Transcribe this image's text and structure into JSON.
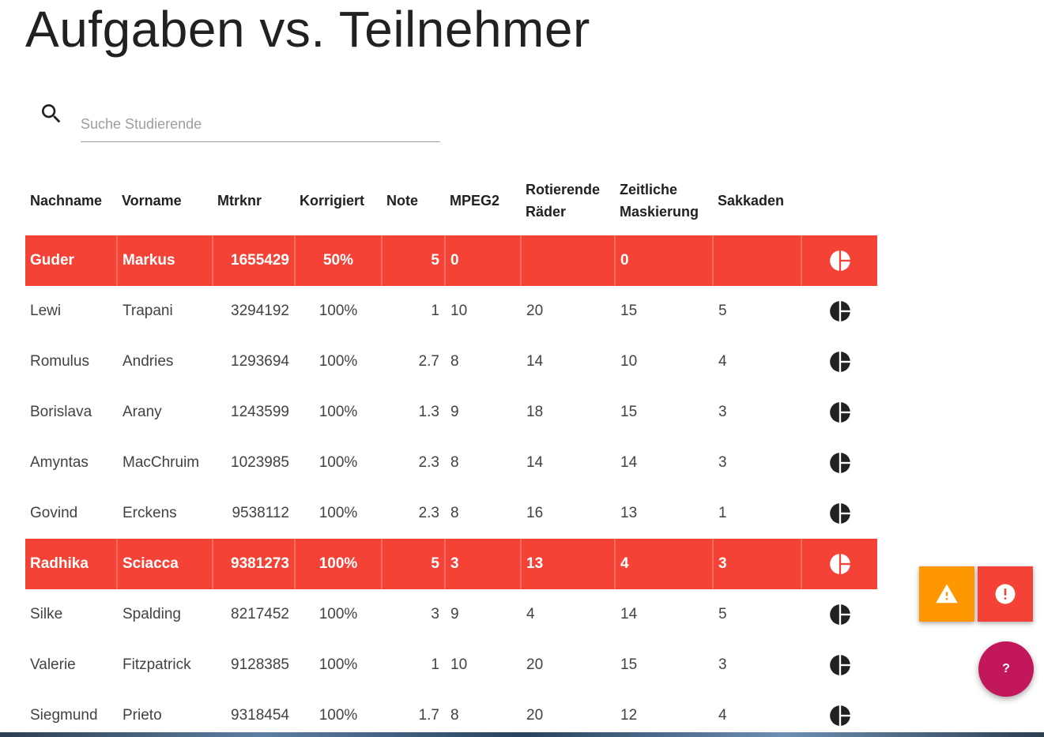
{
  "page": {
    "title": "Aufgaben vs. Teilnehmer"
  },
  "search": {
    "placeholder": "Suche Studierende",
    "value": "",
    "icon": "search-icon"
  },
  "table": {
    "columns": [
      "Nachname",
      "Vorname",
      "Mtrknr",
      "Korrigiert",
      "Note",
      "MPEG2",
      "Rotierende Räder",
      "Zeitliche Maskierung",
      "Sakkaden"
    ],
    "rows": [
      {
        "highlight": true,
        "cells": [
          "Guder",
          "Markus",
          "1655429",
          "50%",
          "5",
          "0",
          "",
          "0",
          ""
        ]
      },
      {
        "highlight": false,
        "cells": [
          "Lewi",
          "Trapani",
          "3294192",
          "100%",
          "1",
          "10",
          "20",
          "15",
          "5"
        ]
      },
      {
        "highlight": false,
        "cells": [
          "Romulus",
          "Andries",
          "1293694",
          "100%",
          "2.7",
          "8",
          "14",
          "10",
          "4"
        ]
      },
      {
        "highlight": false,
        "cells": [
          "Borislava",
          "Arany",
          "1243599",
          "100%",
          "1.3",
          "9",
          "18",
          "15",
          "3"
        ]
      },
      {
        "highlight": false,
        "cells": [
          "Amyntas",
          "MacChruim",
          "1023985",
          "100%",
          "2.3",
          "8",
          "14",
          "14",
          "3"
        ]
      },
      {
        "highlight": false,
        "cells": [
          "Govind",
          "Erckens",
          "9538112",
          "100%",
          "2.3",
          "8",
          "16",
          "13",
          "1"
        ]
      },
      {
        "highlight": true,
        "cells": [
          "Radhika",
          "Sciacca",
          "9381273",
          "100%",
          "5",
          "3",
          "13",
          "4",
          "3"
        ]
      },
      {
        "highlight": false,
        "cells": [
          "Silke",
          "Spalding",
          "8217452",
          "100%",
          "3",
          "9",
          "4",
          "14",
          "5"
        ]
      },
      {
        "highlight": false,
        "cells": [
          "Valerie",
          "Fitzpatrick",
          "9128385",
          "100%",
          "1",
          "10",
          "20",
          "15",
          "3"
        ]
      },
      {
        "highlight": false,
        "cells": [
          "Siegmund",
          "Prieto",
          "9318454",
          "100%",
          "1.7",
          "8",
          "20",
          "12",
          "4"
        ]
      }
    ],
    "row_action_icon": "pie-chart-icon"
  },
  "fabs": {
    "warning": {
      "icon": "warning-icon",
      "color": "#ff9800"
    },
    "error": {
      "icon": "alert-circle-icon",
      "color": "#f44336"
    },
    "help": {
      "label": "?",
      "color": "#c2185b"
    }
  },
  "colors": {
    "highlight_row": "#f44336",
    "text": "#212121"
  }
}
